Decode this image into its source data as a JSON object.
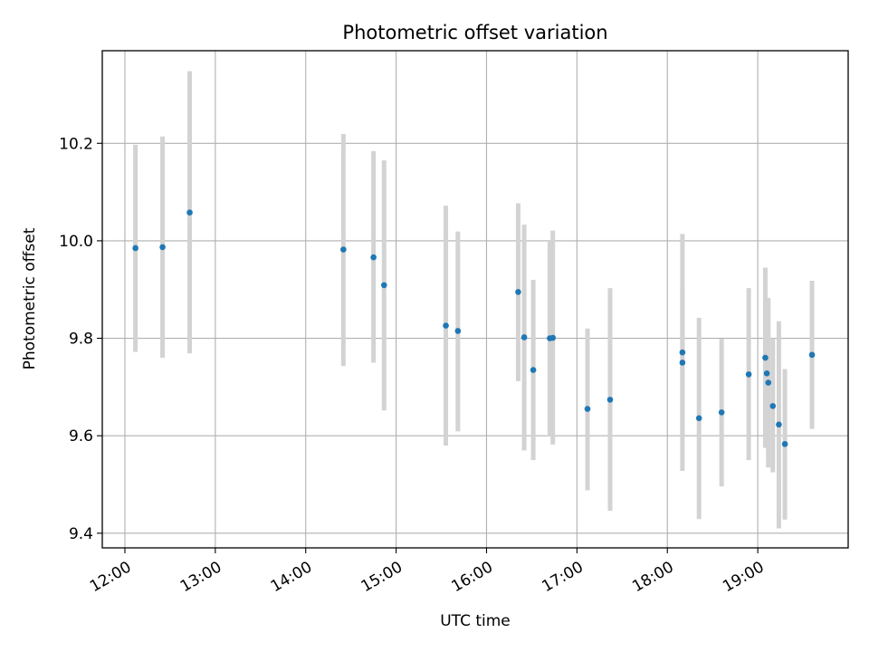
{
  "chart_data": {
    "type": "scatter",
    "title": "Photometric offset variation",
    "xlabel": "UTC time",
    "ylabel": "Photometric offset",
    "x_axis_kind": "time",
    "xlim": [
      "11:45",
      "20:00"
    ],
    "ylim": [
      9.37,
      10.39
    ],
    "x_ticks": [
      "12:00",
      "13:00",
      "14:00",
      "15:00",
      "16:00",
      "17:00",
      "18:00",
      "19:00"
    ],
    "y_ticks": [
      "9.4",
      "9.6",
      "9.8",
      "10.0",
      "10.2"
    ],
    "grid": true,
    "legend": "none",
    "colors": {
      "point": "#1f77b4",
      "error_bar": "#d3d3d3",
      "grid": "#b0b0b0"
    },
    "points": [
      {
        "x": "12:07",
        "y": 9.985,
        "lo": 9.772,
        "hi": 10.197
      },
      {
        "x": "12:25",
        "y": 9.987,
        "lo": 9.76,
        "hi": 10.214
      },
      {
        "x": "12:43",
        "y": 10.058,
        "lo": 9.769,
        "hi": 10.348
      },
      {
        "x": "14:25",
        "y": 9.982,
        "lo": 9.743,
        "hi": 10.219
      },
      {
        "x": "14:45",
        "y": 9.966,
        "lo": 9.75,
        "hi": 10.184
      },
      {
        "x": "14:52",
        "y": 9.909,
        "lo": 9.652,
        "hi": 10.165
      },
      {
        "x": "15:33",
        "y": 9.826,
        "lo": 9.58,
        "hi": 10.072
      },
      {
        "x": "15:41",
        "y": 9.815,
        "lo": 9.609,
        "hi": 10.019
      },
      {
        "x": "16:21",
        "y": 9.895,
        "lo": 9.712,
        "hi": 10.077
      },
      {
        "x": "16:25",
        "y": 9.802,
        "lo": 9.57,
        "hi": 10.033
      },
      {
        "x": "16:31",
        "y": 9.735,
        "lo": 9.55,
        "hi": 9.92
      },
      {
        "x": "16:42",
        "y": 9.8,
        "lo": 9.6,
        "hi": 10.0
      },
      {
        "x": "16:44",
        "y": 9.801,
        "lo": 9.582,
        "hi": 10.021
      },
      {
        "x": "17:07",
        "y": 9.655,
        "lo": 9.488,
        "hi": 9.82
      },
      {
        "x": "17:22",
        "y": 9.674,
        "lo": 9.446,
        "hi": 9.903
      },
      {
        "x": "18:10",
        "y": 9.771,
        "lo": 9.528,
        "hi": 10.014
      },
      {
        "x": "18:10",
        "y": 9.75,
        "lo": 9.6,
        "hi": 9.9
      },
      {
        "x": "18:21",
        "y": 9.636,
        "lo": 9.429,
        "hi": 9.842
      },
      {
        "x": "18:36",
        "y": 9.648,
        "lo": 9.496,
        "hi": 9.799
      },
      {
        "x": "18:54",
        "y": 9.726,
        "lo": 9.55,
        "hi": 9.903
      },
      {
        "x": "19:05",
        "y": 9.76,
        "lo": 9.575,
        "hi": 9.945
      },
      {
        "x": "19:06",
        "y": 9.728,
        "lo": 9.58,
        "hi": 9.88
      },
      {
        "x": "19:07",
        "y": 9.709,
        "lo": 9.535,
        "hi": 9.883
      },
      {
        "x": "19:10",
        "y": 9.661,
        "lo": 9.525,
        "hi": 9.8
      },
      {
        "x": "19:14",
        "y": 9.623,
        "lo": 9.41,
        "hi": 9.835
      },
      {
        "x": "19:18",
        "y": 9.583,
        "lo": 9.428,
        "hi": 9.737
      },
      {
        "x": "19:36",
        "y": 9.766,
        "lo": 9.614,
        "hi": 9.918
      }
    ]
  }
}
